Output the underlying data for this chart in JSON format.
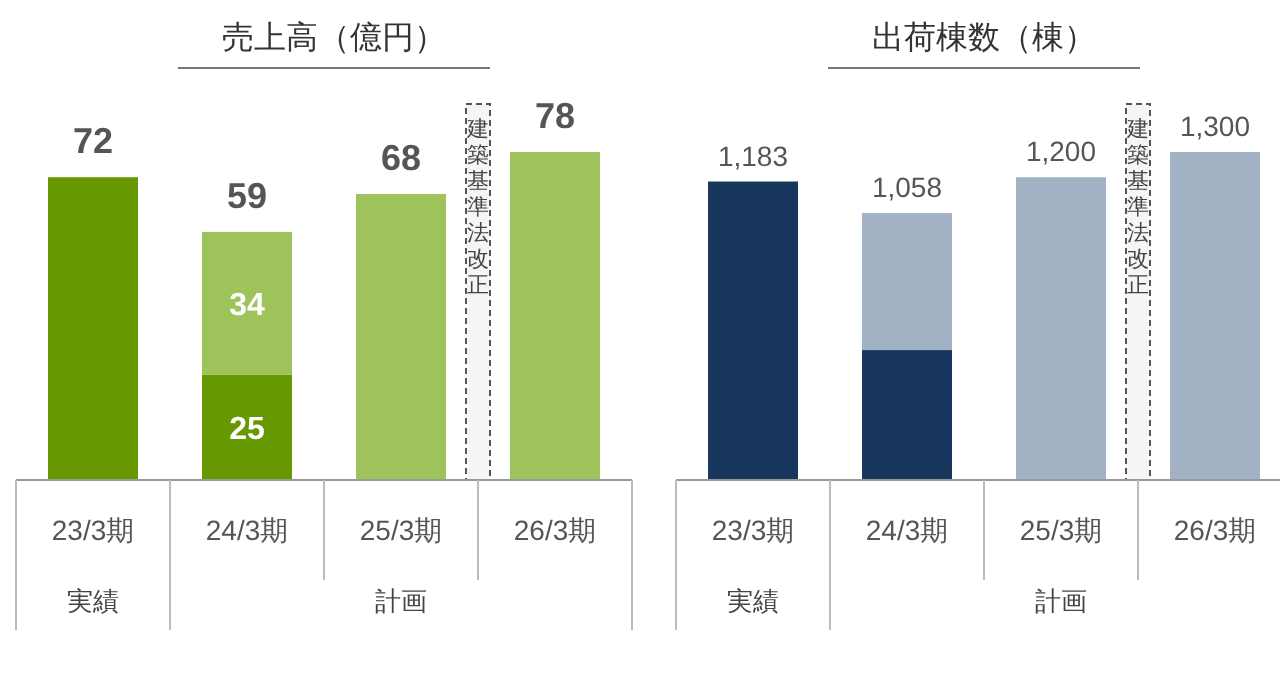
{
  "chart_data": [
    {
      "type": "bar",
      "title": "売上高（億円）",
      "categories": [
        "23/3期",
        "24/3期",
        "25/3期",
        "26/3期"
      ],
      "stacked": true,
      "series": [
        {
          "color": "#669900",
          "values": [
            72,
            25,
            null,
            null
          ],
          "value_labels": [
            null,
            "25",
            null,
            null
          ]
        },
        {
          "color": "#9dc35a",
          "values": [
            null,
            34,
            68,
            78
          ],
          "value_labels": [
            null,
            "34",
            null,
            null
          ]
        }
      ],
      "totals": [
        "72",
        "59",
        "68",
        "78"
      ],
      "bands": [
        {
          "axis": "x",
          "from": "25/3期",
          "to": "26/3期",
          "label": "建築基準法改正",
          "color": "#555555"
        }
      ],
      "annotations": [
        "実績",
        "計画"
      ]
    },
    {
      "type": "bar",
      "title": "出荷棟数（棟）",
      "categories": [
        "23/3期",
        "24/3期",
        "25/3期",
        "26/3期"
      ],
      "stacked": true,
      "series": [
        {
          "color": "#17375e",
          "values": [
            1183,
            515,
            null,
            null
          ],
          "value_labels": [
            "1,183",
            null,
            null,
            null
          ]
        },
        {
          "color": "#a3b1c4",
          "values": [
            null,
            543,
            1200,
            1300
          ],
          "value_labels": [
            null,
            null,
            "1,200",
            "1,300"
          ]
        }
      ],
      "totals": [
        null,
        "1,058",
        null,
        null
      ],
      "bands": [
        {
          "axis": "x",
          "from": "25/3期",
          "to": "26/3期",
          "label": "建築基準法改正",
          "color": "#555555"
        }
      ],
      "annotations": [
        "実績",
        "計画"
      ]
    }
  ]
}
